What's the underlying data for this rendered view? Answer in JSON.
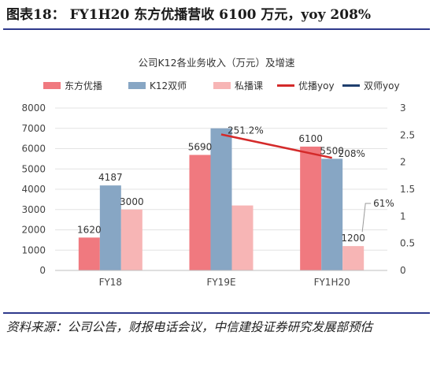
{
  "figure_title": "图表18：  FY1H20  东方优播营收 6100 万元，yoy 208%",
  "source_note": "资料来源：公司公告，财报电话会议，中信建投证券研究发展部预估",
  "colors": {
    "accent_rule": "#2f3a8c",
    "series_dongfang": "#f0797f",
    "series_k12": "#87a6c4",
    "series_private": "#f7b5b5",
    "line_youbo": "#d42a2a",
    "line_shuangshi": "#1f3f6e"
  },
  "chart_data": {
    "type": "bar",
    "title": "公司K12各业务收入（万元）及增速",
    "categories": [
      "FY18",
      "FY19E",
      "FY1H20"
    ],
    "legend_position": "top",
    "grid": true,
    "ylim": [
      0,
      8000
    ],
    "yticks": [
      "0",
      "1000",
      "2000",
      "3000",
      "4000",
      "5000",
      "6000",
      "7000",
      "8000"
    ],
    "y2lim": [
      0,
      3
    ],
    "y2ticks": [
      "0",
      "0.5",
      "1",
      "1.5",
      "2",
      "2.5",
      "3"
    ],
    "series": [
      {
        "name": "东方优播",
        "kind": "bar",
        "values": [
          1620,
          5690,
          6100
        ],
        "labels": [
          "1620",
          "5690",
          "6100"
        ]
      },
      {
        "name": "K12双师",
        "kind": "bar",
        "values": [
          4187,
          7000,
          5500
        ],
        "labels": [
          "4187",
          "",
          "5500"
        ]
      },
      {
        "name": "私播课",
        "kind": "bar",
        "values": [
          3000,
          3200,
          1200
        ],
        "labels": [
          "3000",
          "",
          "1200"
        ]
      }
    ],
    "lines": [
      {
        "name": "优播yoy",
        "values": [
          null,
          2.512,
          2.08
        ],
        "labels": [
          "",
          "251.2%",
          "208%"
        ]
      },
      {
        "name": "双师yoy",
        "values": [
          null,
          null,
          null
        ],
        "labels": [
          "",
          "",
          ""
        ]
      }
    ],
    "annotations": [
      {
        "text": "61%",
        "category": "FY1H20"
      }
    ]
  }
}
